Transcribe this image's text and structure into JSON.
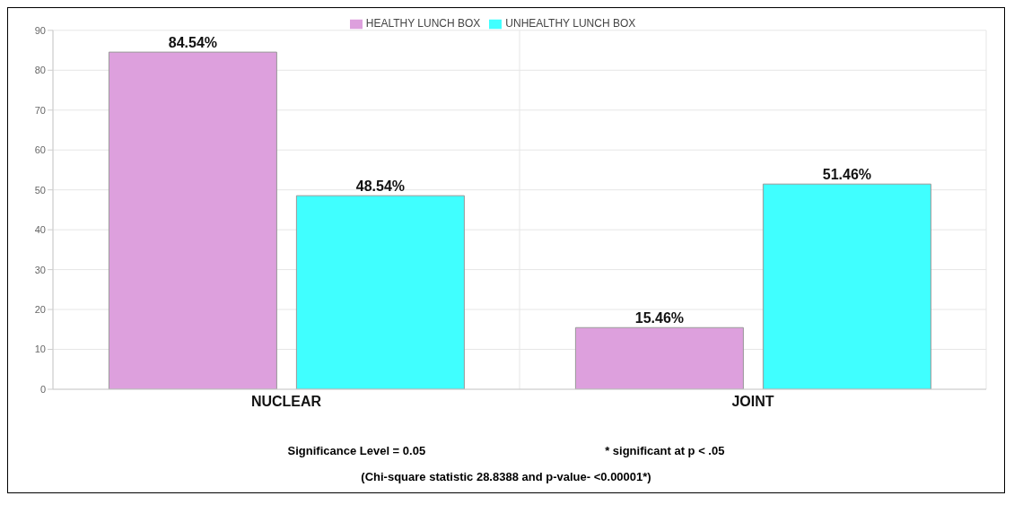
{
  "chart_data": {
    "type": "bar",
    "categories": [
      "NUCLEAR",
      "JOINT"
    ],
    "series": [
      {
        "name": "HEALTHY LUNCH BOX",
        "color": "#dda0dd",
        "values": [
          84.54,
          15.46
        ],
        "value_labels": [
          "84.54%",
          "15.46%"
        ]
      },
      {
        "name": "UNHEALTHY LUNCH BOX",
        "color": "#40ffff",
        "values": [
          48.54,
          51.46
        ],
        "value_labels": [
          "48.54%",
          "51.46%"
        ]
      }
    ],
    "ylim": [
      0,
      90
    ],
    "yticks": [
      0,
      10,
      20,
      30,
      40,
      50,
      60,
      70,
      80,
      90
    ],
    "grid": true,
    "legend": "top",
    "annotations": [
      "Significance Level = 0.05",
      "* significant at p < .05",
      "(Chi-square statistic 28.8388 and p-value- <0.00001*)"
    ]
  }
}
